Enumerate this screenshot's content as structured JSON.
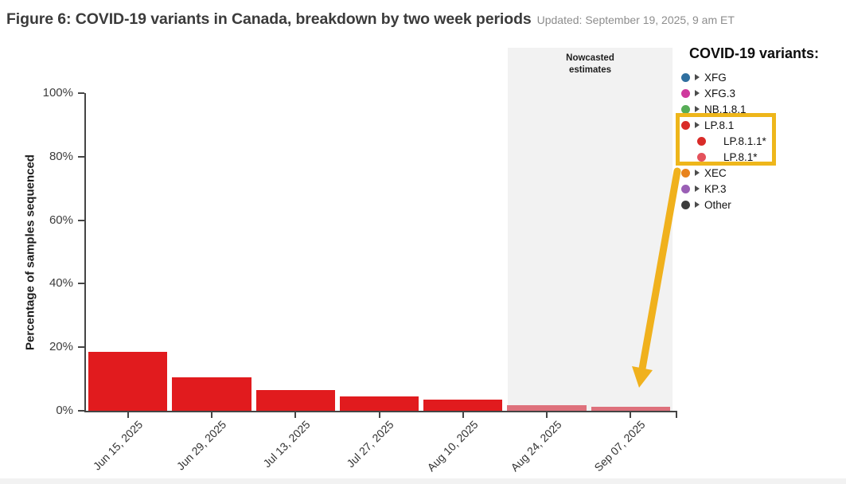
{
  "header": {
    "title": "Figure 6: COVID-19 variants in Canada, breakdown by two week periods",
    "updated": "Updated: September 19, 2025, 9 am ET"
  },
  "chart_data": {
    "type": "bar",
    "title": "COVID-19 variants in Canada, breakdown by two week periods",
    "ylabel": "Percentage of samples sequenced",
    "xlabel": "",
    "ylim": [
      0,
      100
    ],
    "ytick_labels": [
      "0%",
      "20%",
      "40%",
      "60%",
      "80%",
      "100%"
    ],
    "grid": false,
    "legend_position": "right",
    "categories": [
      "Jun 15, 2025",
      "Jun 29, 2025",
      "Jul 13, 2025",
      "Jul 27, 2025",
      "Aug 10, 2025",
      "Aug 24, 2025",
      "Sep 07, 2025"
    ],
    "series": [
      {
        "name": "LP.8.1",
        "values": [
          18.5,
          10.5,
          6.5,
          4.6,
          3.4,
          1.8,
          1.2
        ]
      }
    ],
    "bar_color": "#e11b1e",
    "nowcast_bar_color": "#de717c",
    "nowcast": {
      "label": "Nowcasted\nestimates",
      "start_index": 5,
      "region_color": "#f2f2f2",
      "categories": [
        "Aug 24, 2025",
        "Sep 07, 2025"
      ]
    }
  },
  "legend": {
    "title": "COVID-19 variants:",
    "items": [
      {
        "label": "XFG",
        "color": "#2f6f9f",
        "expandable": true,
        "indent": 0,
        "highlighted": false
      },
      {
        "label": "XFG.3",
        "color": "#cf3a9d",
        "expandable": true,
        "indent": 0,
        "highlighted": false
      },
      {
        "label": "NB.1.8.1",
        "color": "#57ad57",
        "expandable": true,
        "indent": 0,
        "highlighted": false
      },
      {
        "label": "LP.8.1",
        "color": "#d92b28",
        "expandable": true,
        "indent": 0,
        "highlighted": true
      },
      {
        "label": "LP.8.1.1*",
        "color": "#d92b28",
        "expandable": false,
        "indent": 1,
        "highlighted": true
      },
      {
        "label": "LP.8.1*",
        "color": "#e4525c",
        "expandable": false,
        "indent": 1,
        "highlighted": true
      },
      {
        "label": "XEC",
        "color": "#e8831c",
        "expandable": true,
        "indent": 0,
        "highlighted": false
      },
      {
        "label": "KP.3",
        "color": "#9a5fb5",
        "expandable": true,
        "indent": 0,
        "highlighted": false
      },
      {
        "label": "Other",
        "color": "#3b3b3b",
        "expandable": true,
        "indent": 0,
        "highlighted": false
      }
    ]
  },
  "annotations": {
    "highlight_box_color": "#eeb61b",
    "arrow_color": "#f0b11d"
  }
}
